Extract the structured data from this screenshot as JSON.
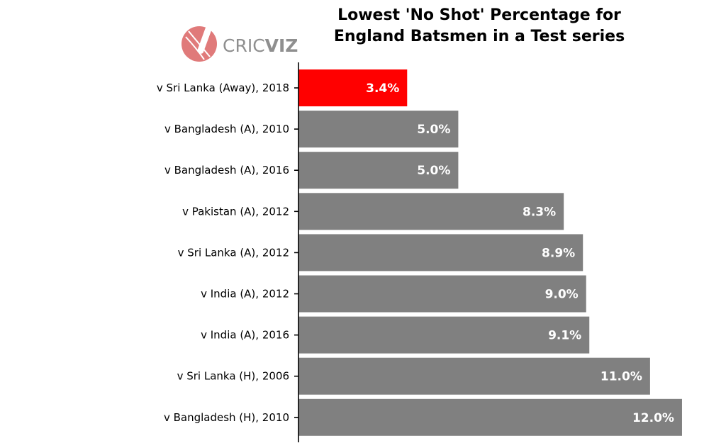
{
  "logo": {
    "brand_regular": "CRIC",
    "brand_bold": "VIZ",
    "icon": "cricket-ball-and-bat-icon"
  },
  "colors": {
    "highlight": "#ff0000",
    "bar": "#808080",
    "label": "#ffffff",
    "axis": "#000000",
    "logo": "#e07a7a",
    "logo_text": "#8f8f8f"
  },
  "chart_data": {
    "type": "bar",
    "orientation": "horizontal",
    "title": "Lowest 'No Shot' Percentage for England Batsmen in a Test series",
    "title_lines": [
      "Lowest 'No Shot' Percentage for",
      "England Batsmen in a Test series"
    ],
    "xlabel": "",
    "ylabel": "",
    "categories": [
      "v Sri Lanka (Away), 2018",
      "v Bangladesh (A), 2010",
      "v Bangladesh (A), 2016",
      "v Pakistan (A), 2012",
      "v Sri Lanka (A), 2012",
      "v India (A), 2012",
      "v India (A), 2016",
      "v Sri Lanka (H), 2006",
      "v Bangladesh (H), 2010"
    ],
    "values": [
      3.4,
      5.0,
      5.0,
      8.3,
      8.9,
      9.0,
      9.1,
      11.0,
      12.0
    ],
    "value_labels": [
      "3.4%",
      "5.0%",
      "5.0%",
      "8.3%",
      "8.9%",
      "9.0%",
      "9.1%",
      "11.0%",
      "12.0%"
    ],
    "highlighted_index": 0,
    "xlim": [
      0,
      12.4
    ],
    "grid": false,
    "legend": "none"
  }
}
